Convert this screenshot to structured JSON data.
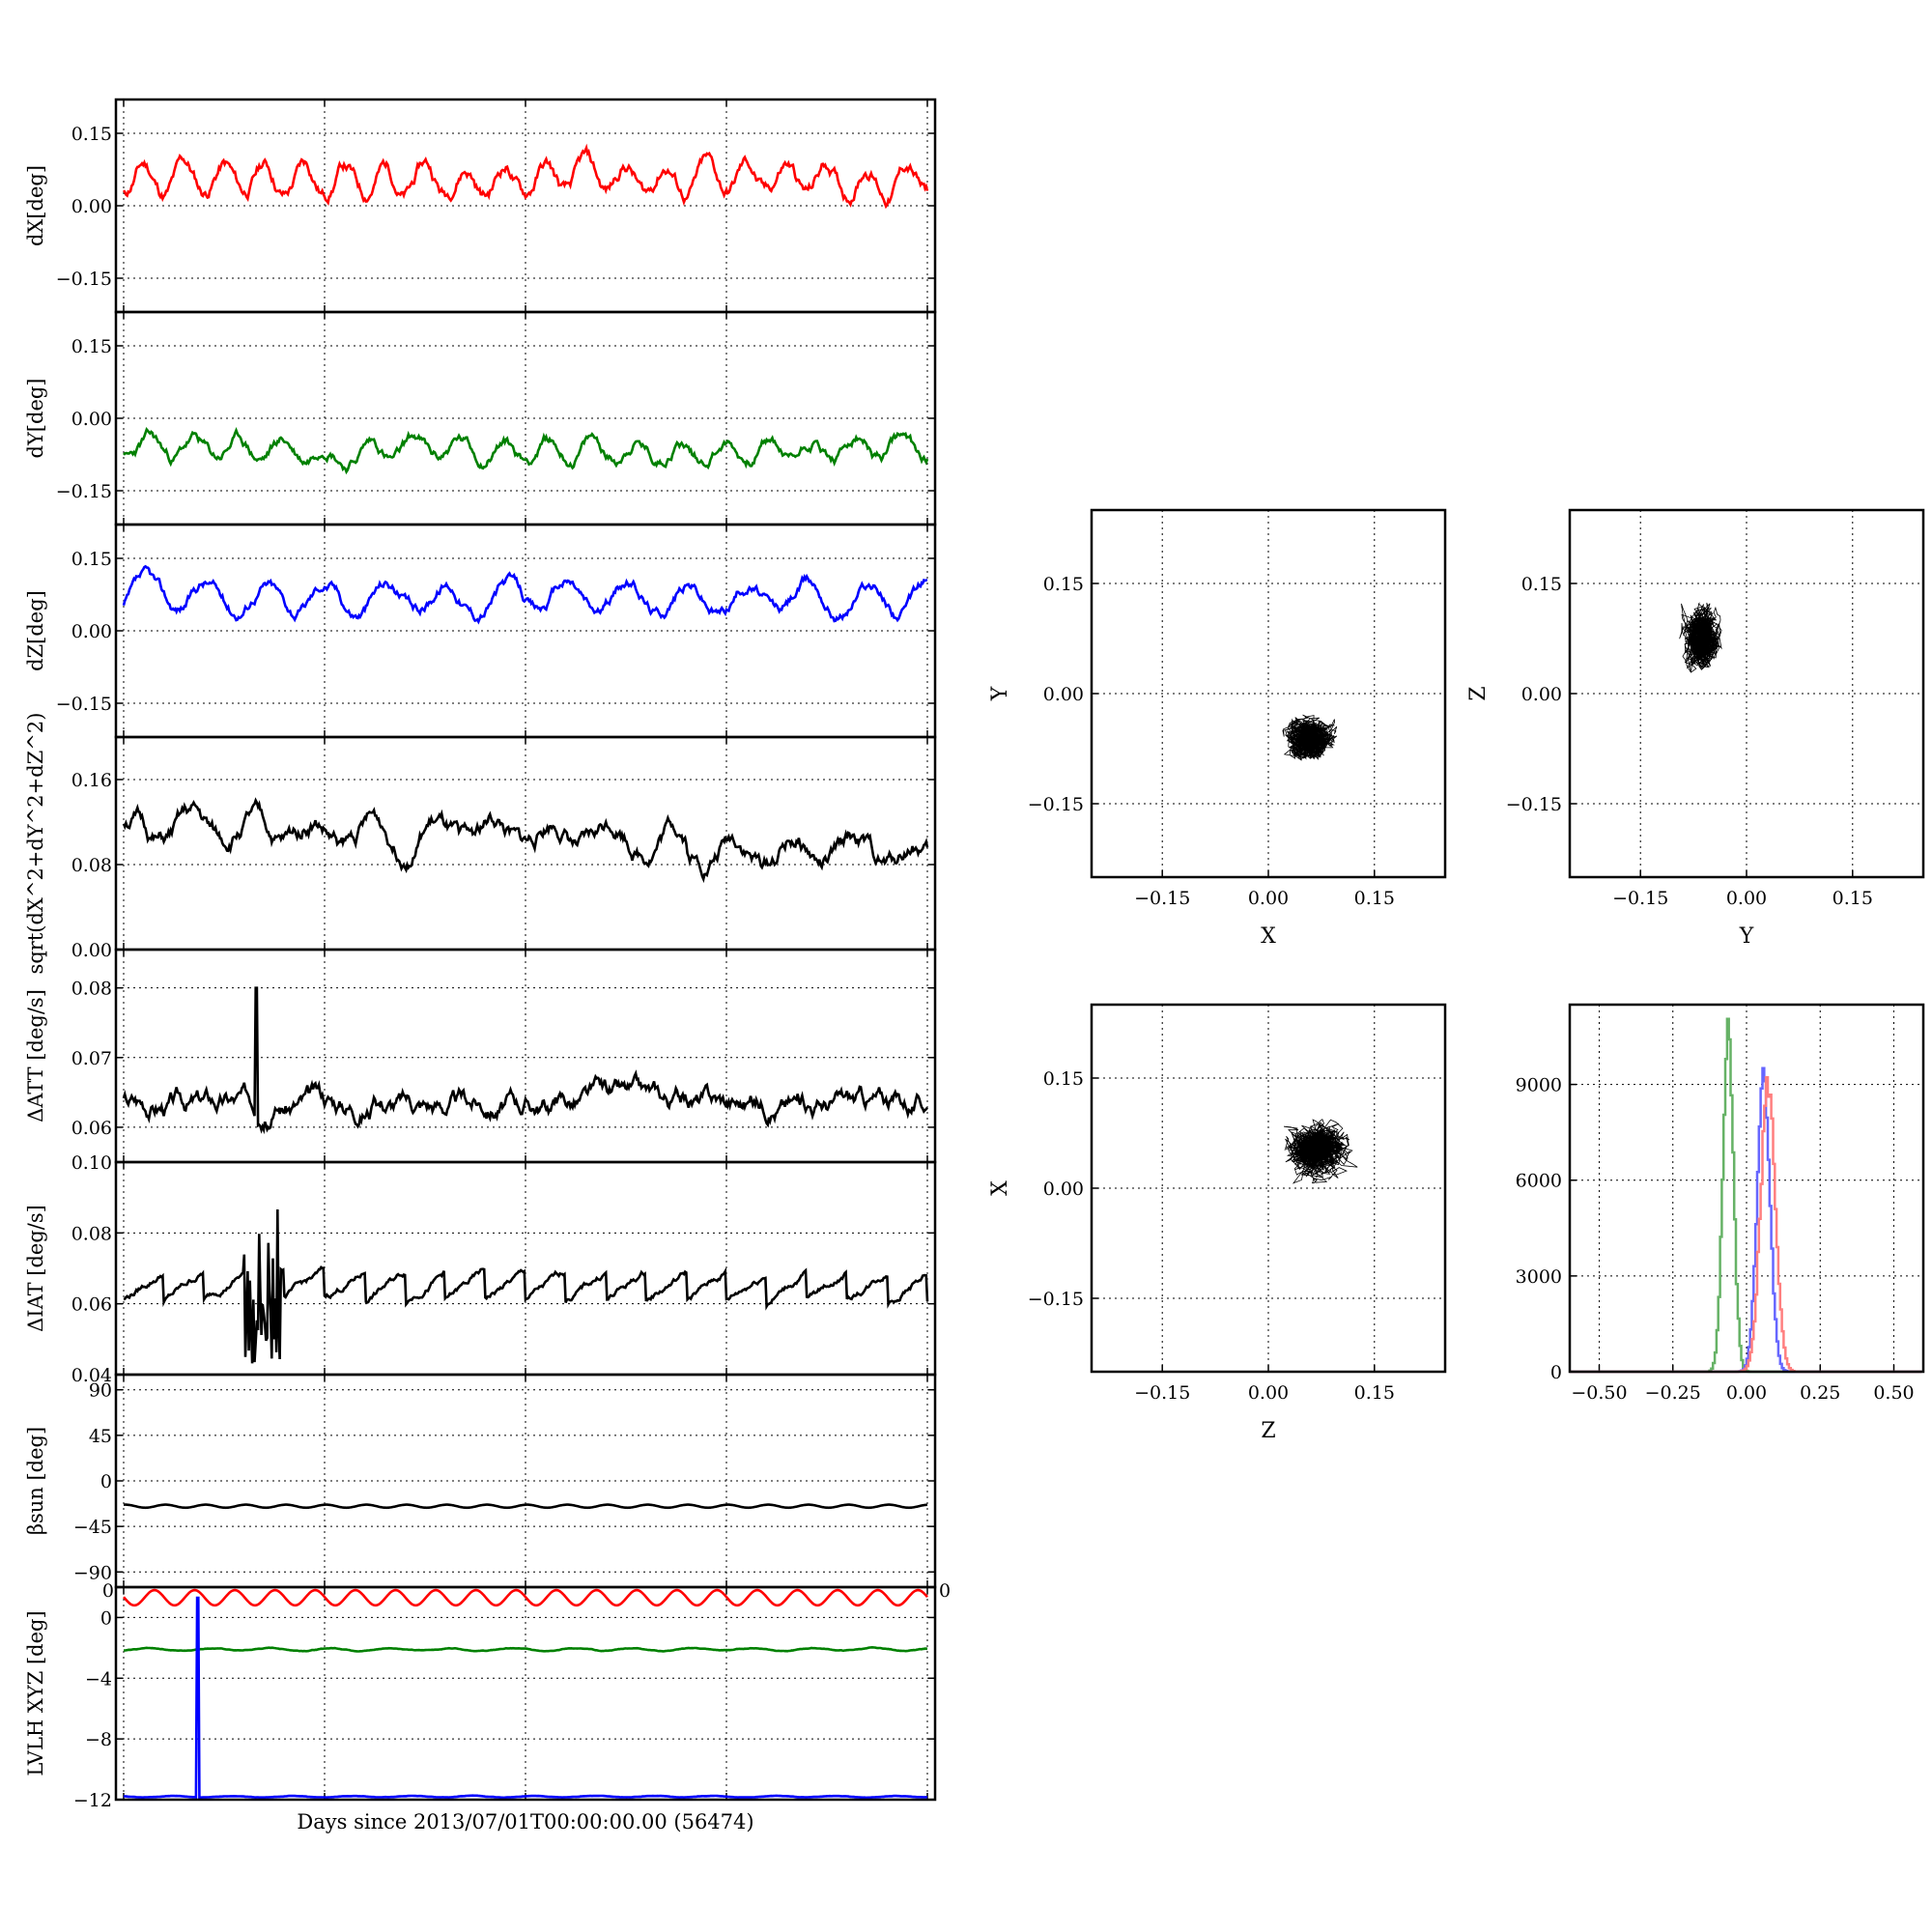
{
  "colors": {
    "red": "#ff0000",
    "green": "#008000",
    "blue": "#0000ff",
    "black": "#000000",
    "hist_red": "#ff7f7f",
    "hist_green": "#66b266",
    "hist_blue": "#6666ff"
  },
  "figure": {
    "xlabel": "Days since 2013/07/01T00:00:00.00 (56474)"
  },
  "chart_data": [
    {
      "id": "dx",
      "type": "line",
      "ylabel": "dX[deg]",
      "ylim": [
        -0.22,
        0.22
      ],
      "yticks": [
        0.15,
        0.0,
        -0.15
      ],
      "ytick_labels": [
        "0.15",
        "0.00",
        "−0.15"
      ],
      "xlim": [
        0,
        4
      ],
      "grid": true,
      "series": [
        {
          "color": "red",
          "mean": 0.055,
          "amp": 0.03,
          "noise": 0.012,
          "period": 0.2,
          "seed": 11
        }
      ]
    },
    {
      "id": "dy",
      "type": "line",
      "ylabel": "dY[deg]",
      "ylim": [
        -0.22,
        0.22
      ],
      "yticks": [
        0.15,
        0.0,
        -0.15
      ],
      "ytick_labels": [
        "0.15",
        "0.00",
        "−0.15"
      ],
      "xlim": [
        0,
        4
      ],
      "grid": true,
      "series": [
        {
          "color": "green",
          "mean": -0.065,
          "amp": 0.02,
          "noise": 0.01,
          "period": 0.22,
          "seed": 23
        }
      ]
    },
    {
      "id": "dz",
      "type": "line",
      "ylabel": "dZ[deg]",
      "ylim": [
        -0.22,
        0.22
      ],
      "yticks": [
        0.15,
        0.0,
        -0.15
      ],
      "ytick_labels": [
        "0.15",
        "0.00",
        "−0.15"
      ],
      "xlim": [
        0,
        4
      ],
      "grid": true,
      "series": [
        {
          "color": "blue",
          "mean": 0.07,
          "amp": 0.03,
          "noise": 0.01,
          "period": 0.3,
          "seed": 37
        }
      ]
    },
    {
      "id": "mag",
      "type": "line",
      "ylabel": "sqrt(dX^2+dY^2+dZ^2)",
      "ylim": [
        0.0,
        0.2
      ],
      "yticks": [
        0.16,
        0.08,
        0.0
      ],
      "ytick_labels": [
        "0.16",
        "0.08",
        "0.00"
      ],
      "xlim": [
        0,
        4
      ],
      "grid": true,
      "series": [
        {
          "color": "black",
          "mean": 0.112,
          "amp": 0.012,
          "noise": 0.007,
          "period": 0.3,
          "seed": 51,
          "trend": -0.02
        }
      ]
    },
    {
      "id": "datt",
      "type": "line",
      "ylabel": "ΔATT [deg/s]",
      "ylim": [
        0.055,
        0.0855
      ],
      "yticks": [
        0.08,
        0.07,
        0.06
      ],
      "ytick_labels": [
        "0.08",
        "0.07",
        "0.06"
      ],
      "xlim": [
        0,
        4
      ],
      "grid": true,
      "series": [
        {
          "color": "black",
          "mean": 0.0638,
          "amp": 0.0,
          "noise": 0.0012,
          "period": 0.05,
          "seed": 67,
          "spike_at": 0.66,
          "spike_value": 0.08
        }
      ]
    },
    {
      "id": "diat",
      "type": "line",
      "ylabel": "ΔIAT [deg/s]",
      "ylim": [
        0.04,
        0.1
      ],
      "yticks": [
        0.1,
        0.08,
        0.06,
        0.04
      ],
      "ytick_labels": [
        "0.10",
        "0.08",
        "0.06",
        "0.04"
      ],
      "xlim": [
        0,
        4
      ],
      "grid": true,
      "series": [
        {
          "color": "black",
          "mean": 0.065,
          "amp": 0.0,
          "noise": 0.0008,
          "period": 0.2,
          "seed": 79,
          "sawtooth": 0.004,
          "burst": [
            0.6,
            0.78
          ]
        }
      ]
    },
    {
      "id": "beta",
      "type": "line",
      "ylabel": "βsun [deg]",
      "ylim": [
        -105,
        105
      ],
      "yticks": [
        90,
        45,
        0,
        -45,
        -90
      ],
      "ytick_labels": [
        "90",
        "45",
        "0",
        "−45",
        "−90"
      ],
      "xlim": [
        0,
        4
      ],
      "grid": true,
      "series": [
        {
          "color": "black",
          "mean": -25,
          "amp": 1.5,
          "noise": 0.0,
          "period": 0.2,
          "seed": 83
        }
      ]
    },
    {
      "id": "lvlh",
      "type": "line",
      "ylabel": "LVLH XYZ [deg]",
      "ylim": [
        -12,
        2
      ],
      "yticks": [
        0,
        -4,
        -8,
        -12
      ],
      "ytick_labels": [
        "0",
        "−4",
        "−8",
        "−12"
      ],
      "top_label": "0",
      "top_label_right": "0",
      "xlim": [
        0,
        4
      ],
      "grid": true,
      "series": [
        {
          "color": "red",
          "mean": 1.3,
          "amp": 0.5,
          "noise": 0.0,
          "period": 0.2,
          "seed": 91
        },
        {
          "color": "green",
          "mean": -2.1,
          "amp": 0.08,
          "noise": 0.02,
          "period": 0.3,
          "seed": 93
        },
        {
          "color": "blue",
          "mean": -11.8,
          "amp": 0.05,
          "noise": 0.01,
          "period": 0.3,
          "seed": 97,
          "spike_at": 0.37,
          "spike_value": 1.3
        }
      ]
    },
    {
      "id": "xy",
      "type": "scatter",
      "xlabel": "X",
      "ylabel": "Y",
      "xlim": [
        -0.25,
        0.25
      ],
      "ylim": [
        -0.25,
        0.25
      ],
      "ticks": [
        -0.15,
        0.0,
        0.15
      ],
      "tick_labels": [
        "−0.15",
        "0.00",
        "0.15"
      ],
      "grid": true,
      "cluster": {
        "cx": 0.057,
        "cy": -0.063,
        "sx": 0.028,
        "sy": 0.025
      }
    },
    {
      "id": "yz",
      "type": "scatter",
      "xlabel": "Y",
      "ylabel": "Z",
      "xlim": [
        -0.25,
        0.25
      ],
      "ylim": [
        -0.25,
        0.25
      ],
      "ticks": [
        -0.15,
        0.0,
        0.15
      ],
      "tick_labels": [
        "−0.15",
        "0.00",
        "0.15"
      ],
      "grid": true,
      "cluster": {
        "cx": -0.062,
        "cy": 0.075,
        "sx": 0.022,
        "sy": 0.035
      }
    },
    {
      "id": "zx",
      "type": "scatter",
      "xlabel": "Z",
      "ylabel": "X",
      "xlim": [
        -0.25,
        0.25
      ],
      "ylim": [
        -0.25,
        0.25
      ],
      "ticks": [
        -0.15,
        0.0,
        0.15
      ],
      "tick_labels": [
        "−0.15",
        "0.00",
        "0.15"
      ],
      "grid": true,
      "cluster": {
        "cx": 0.07,
        "cy": 0.055,
        "sx": 0.035,
        "sy": 0.03
      }
    },
    {
      "id": "hist",
      "type": "bar",
      "xlim": [
        -0.6,
        0.6
      ],
      "ylim": [
        0,
        11500
      ],
      "xticks": [
        -0.5,
        -0.25,
        0.0,
        0.25,
        0.5
      ],
      "xtick_labels": [
        "−0.50",
        "−0.25",
        "0.00",
        "0.25",
        "0.50"
      ],
      "yticks": [
        0,
        3000,
        6000,
        9000
      ],
      "ytick_labels": [
        "0",
        "3000",
        "6000",
        "9000"
      ],
      "grid": true,
      "series": [
        {
          "color": "hist_green",
          "center": -0.065,
          "sigma": 0.018,
          "peak": 10800
        },
        {
          "color": "hist_blue",
          "center": 0.055,
          "sigma": 0.022,
          "peak": 9300
        },
        {
          "color": "hist_red",
          "center": 0.07,
          "sigma": 0.025,
          "peak": 9200
        }
      ]
    }
  ]
}
